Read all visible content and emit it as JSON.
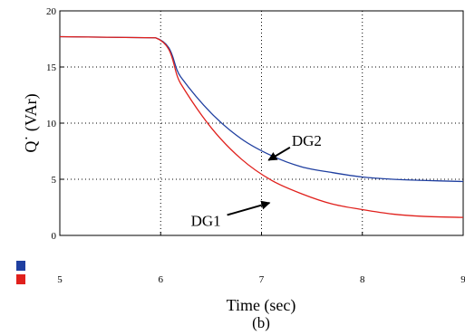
{
  "chart_data": {
    "type": "line",
    "xlabel": "Time (sec)",
    "ylabel": "Q˙ (VAr)",
    "caption": "(b)",
    "xlim": [
      5,
      9
    ],
    "ylim": [
      0,
      20
    ],
    "xticks": [
      "5",
      "6",
      "7",
      "8",
      "9"
    ],
    "yticks": [
      "0",
      "5",
      "10",
      "15",
      "20"
    ],
    "grid": true,
    "legend_colors": [
      "#1f3fa0",
      "#e0201c"
    ],
    "series": [
      {
        "name": "DG2",
        "color": "#1f3fa0",
        "x": [
          5.0,
          5.95,
          6.2,
          6.5,
          6.8,
          7.1,
          7.4,
          7.7,
          8.0,
          8.3,
          8.6,
          9.0
        ],
        "y": [
          17.7,
          17.6,
          14.1,
          10.9,
          8.6,
          7.1,
          6.1,
          5.6,
          5.2,
          5.0,
          4.9,
          4.8
        ]
      },
      {
        "name": "DG1",
        "color": "#e0201c",
        "x": [
          5.0,
          5.95,
          6.2,
          6.5,
          6.8,
          7.1,
          7.4,
          7.7,
          8.0,
          8.3,
          8.6,
          9.0
        ],
        "y": [
          17.7,
          17.6,
          13.5,
          9.6,
          6.8,
          4.9,
          3.7,
          2.8,
          2.3,
          1.9,
          1.7,
          1.6
        ]
      }
    ],
    "annotations": [
      {
        "label": "DG2",
        "text_x": 7.3,
        "text_y": 8.0,
        "arrow_to_x": 7.07,
        "arrow_to_y": 6.7
      },
      {
        "label": "DG1",
        "text_x": 6.3,
        "text_y": 0.85,
        "arrow_to_x": 7.08,
        "arrow_to_y": 2.9
      }
    ]
  }
}
